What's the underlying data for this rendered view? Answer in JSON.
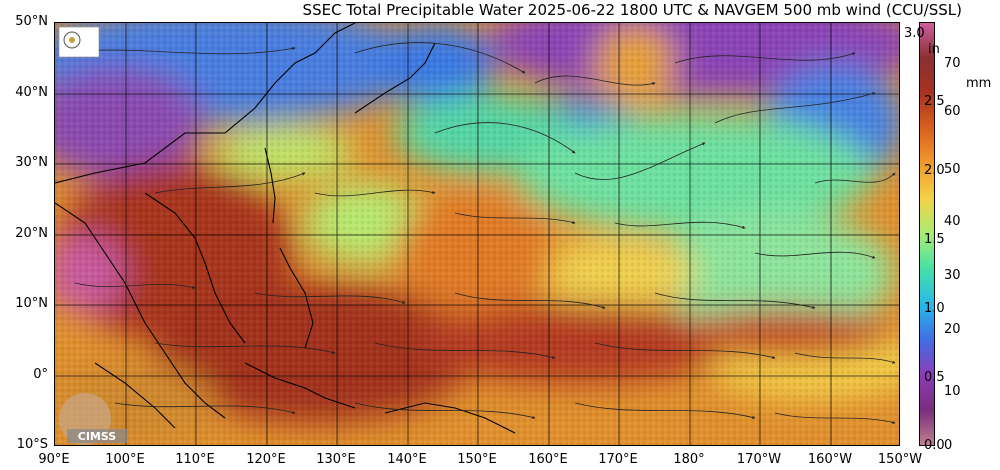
{
  "title": "SSEC Total Precipitable Water  2025-06-22 1800 UTC & NAVGEM 500 mb wind (CCU/SSL)",
  "lat_labels": [
    "50°N",
    "40°N",
    "30°N",
    "20°N",
    "10°N",
    "0°",
    "10°S"
  ],
  "lon_labels": [
    "90°E",
    "100°E",
    "110°E",
    "120°E",
    "130°E",
    "140°E",
    "150°E",
    "160°E",
    "170°E",
    "180°",
    "170°W",
    "160°W",
    "150°W"
  ],
  "colorbar": {
    "inch_unit": "in",
    "mm_unit": "mm",
    "inch_ticks": [
      "3.0",
      "2.5",
      "2.0",
      "1.5",
      "1.0",
      "0.5",
      "0.0"
    ],
    "mm_ticks": [
      "70",
      "60",
      "50",
      "40",
      "30",
      "20",
      "10",
      "0"
    ],
    "stops": [
      "#c08090",
      "#7a2d7e",
      "#8c3cb8",
      "#3e6fe3",
      "#29b9e8",
      "#45e0a8",
      "#a8ec72",
      "#f3d247",
      "#f09a2c",
      "#d9601f",
      "#a8331f",
      "#883032",
      "#d05da0"
    ]
  },
  "logo": "CIMSS",
  "colors": {
    "ocean_dry": "#3f7de2",
    "ocean_moist": "#e8902c",
    "ocean_wet": "#a8341e",
    "land_outline": "#000000"
  }
}
